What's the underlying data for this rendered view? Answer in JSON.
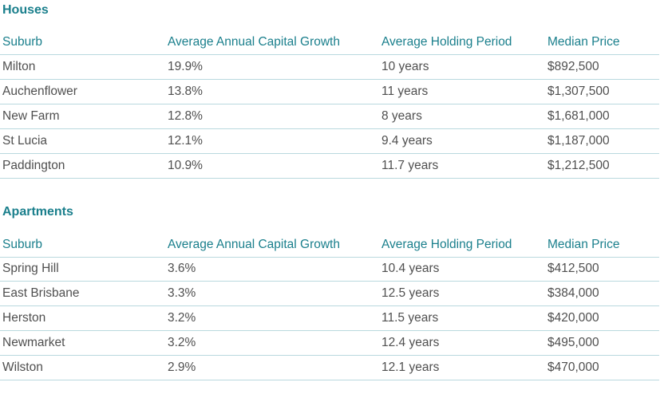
{
  "sections": [
    {
      "title": "Houses",
      "headers": [
        "Suburb",
        "Average Annual Capital Growth",
        "Average Holding Period",
        "Median Price"
      ],
      "rows": [
        [
          "Milton",
          "19.9%",
          "10 years",
          "$892,500"
        ],
        [
          "Auchenflower",
          "13.8%",
          "11 years",
          "$1,307,500"
        ],
        [
          "New Farm",
          "12.8%",
          "8 years",
          "$1,681,000"
        ],
        [
          "St Lucia",
          "12.1%",
          "9.4 years",
          "$1,187,000"
        ],
        [
          "Paddington",
          "10.9%",
          "11.7 years",
          "$1,212,500"
        ]
      ]
    },
    {
      "title": "Apartments",
      "headers": [
        "Suburb",
        "Average Annual Capital Growth",
        "Average Holding Period",
        "Median Price"
      ],
      "rows": [
        [
          "Spring Hill",
          "3.6%",
          "10.4 years",
          "$412,500"
        ],
        [
          "East Brisbane",
          "3.3%",
          "12.5 years",
          "$384,000"
        ],
        [
          "Herston",
          "3.2%",
          "11.5 years",
          "$420,000"
        ],
        [
          "Newmarket",
          "3.2%",
          "12.4 years",
          "$495,000"
        ],
        [
          "Wilston",
          "2.9%",
          "12.1 years",
          "$470,000"
        ]
      ]
    }
  ],
  "colors": {
    "accent": "#1a7f8c",
    "text": "#4f4f4f",
    "rule": "#b9d9de"
  }
}
